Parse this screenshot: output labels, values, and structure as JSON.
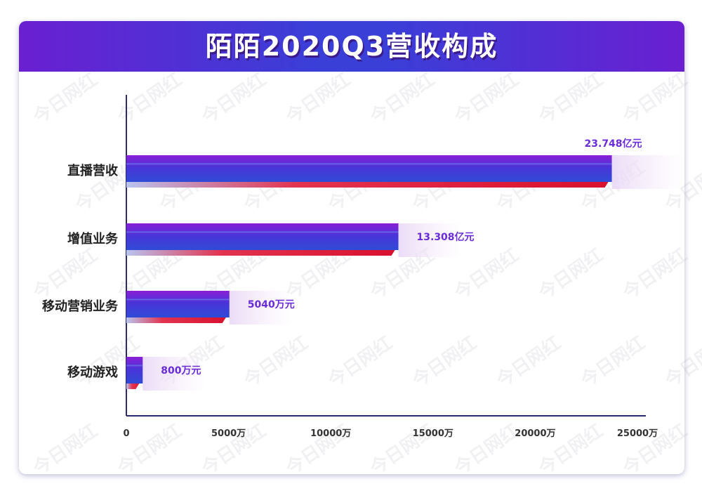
{
  "title": "陌陌2020Q3营收构成",
  "watermark": "今日网红",
  "colors": {
    "header_start": "#6a1fd1",
    "header_mid": "#3a3fd8",
    "bar_top": "#7b1fd8",
    "bar_bottom": "#2f4bd6",
    "bar_shadow": "#e0193a",
    "label_color": "#6a2bd8",
    "axis_color": "#2b2b6a"
  },
  "chart_data": {
    "type": "bar",
    "orientation": "horizontal",
    "categories": [
      "直播营收",
      "增值业务",
      "移动营销业务",
      "移动游戏"
    ],
    "values": [
      23748,
      13308,
      5040,
      800
    ],
    "data_labels": [
      "23.748亿元",
      "13.308亿元",
      "5040万元",
      "800万元"
    ],
    "x_ticks": [
      {
        "value": 0,
        "label": "0"
      },
      {
        "value": 5000,
        "label": "5000万"
      },
      {
        "value": 10000,
        "label": "10000万"
      },
      {
        "value": 15000,
        "label": "15000万"
      },
      {
        "value": 20000,
        "label": "20000万"
      },
      {
        "value": 25000,
        "label": "25000万"
      }
    ],
    "xlim": [
      0,
      25000
    ],
    "grid": false,
    "legend": "none"
  }
}
